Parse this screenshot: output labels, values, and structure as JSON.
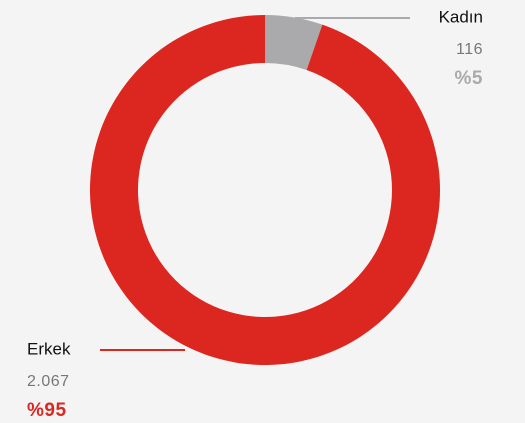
{
  "chart_data": {
    "type": "pie",
    "donut": true,
    "categories": [
      "Kadın",
      "Erkek"
    ],
    "values": [
      116,
      2067
    ],
    "value_labels": [
      "116",
      "2.067"
    ],
    "percents": [
      5,
      95
    ],
    "percent_labels": [
      "%5",
      "%95"
    ],
    "colors": [
      "#aaaaad",
      "#dc2720"
    ]
  }
}
